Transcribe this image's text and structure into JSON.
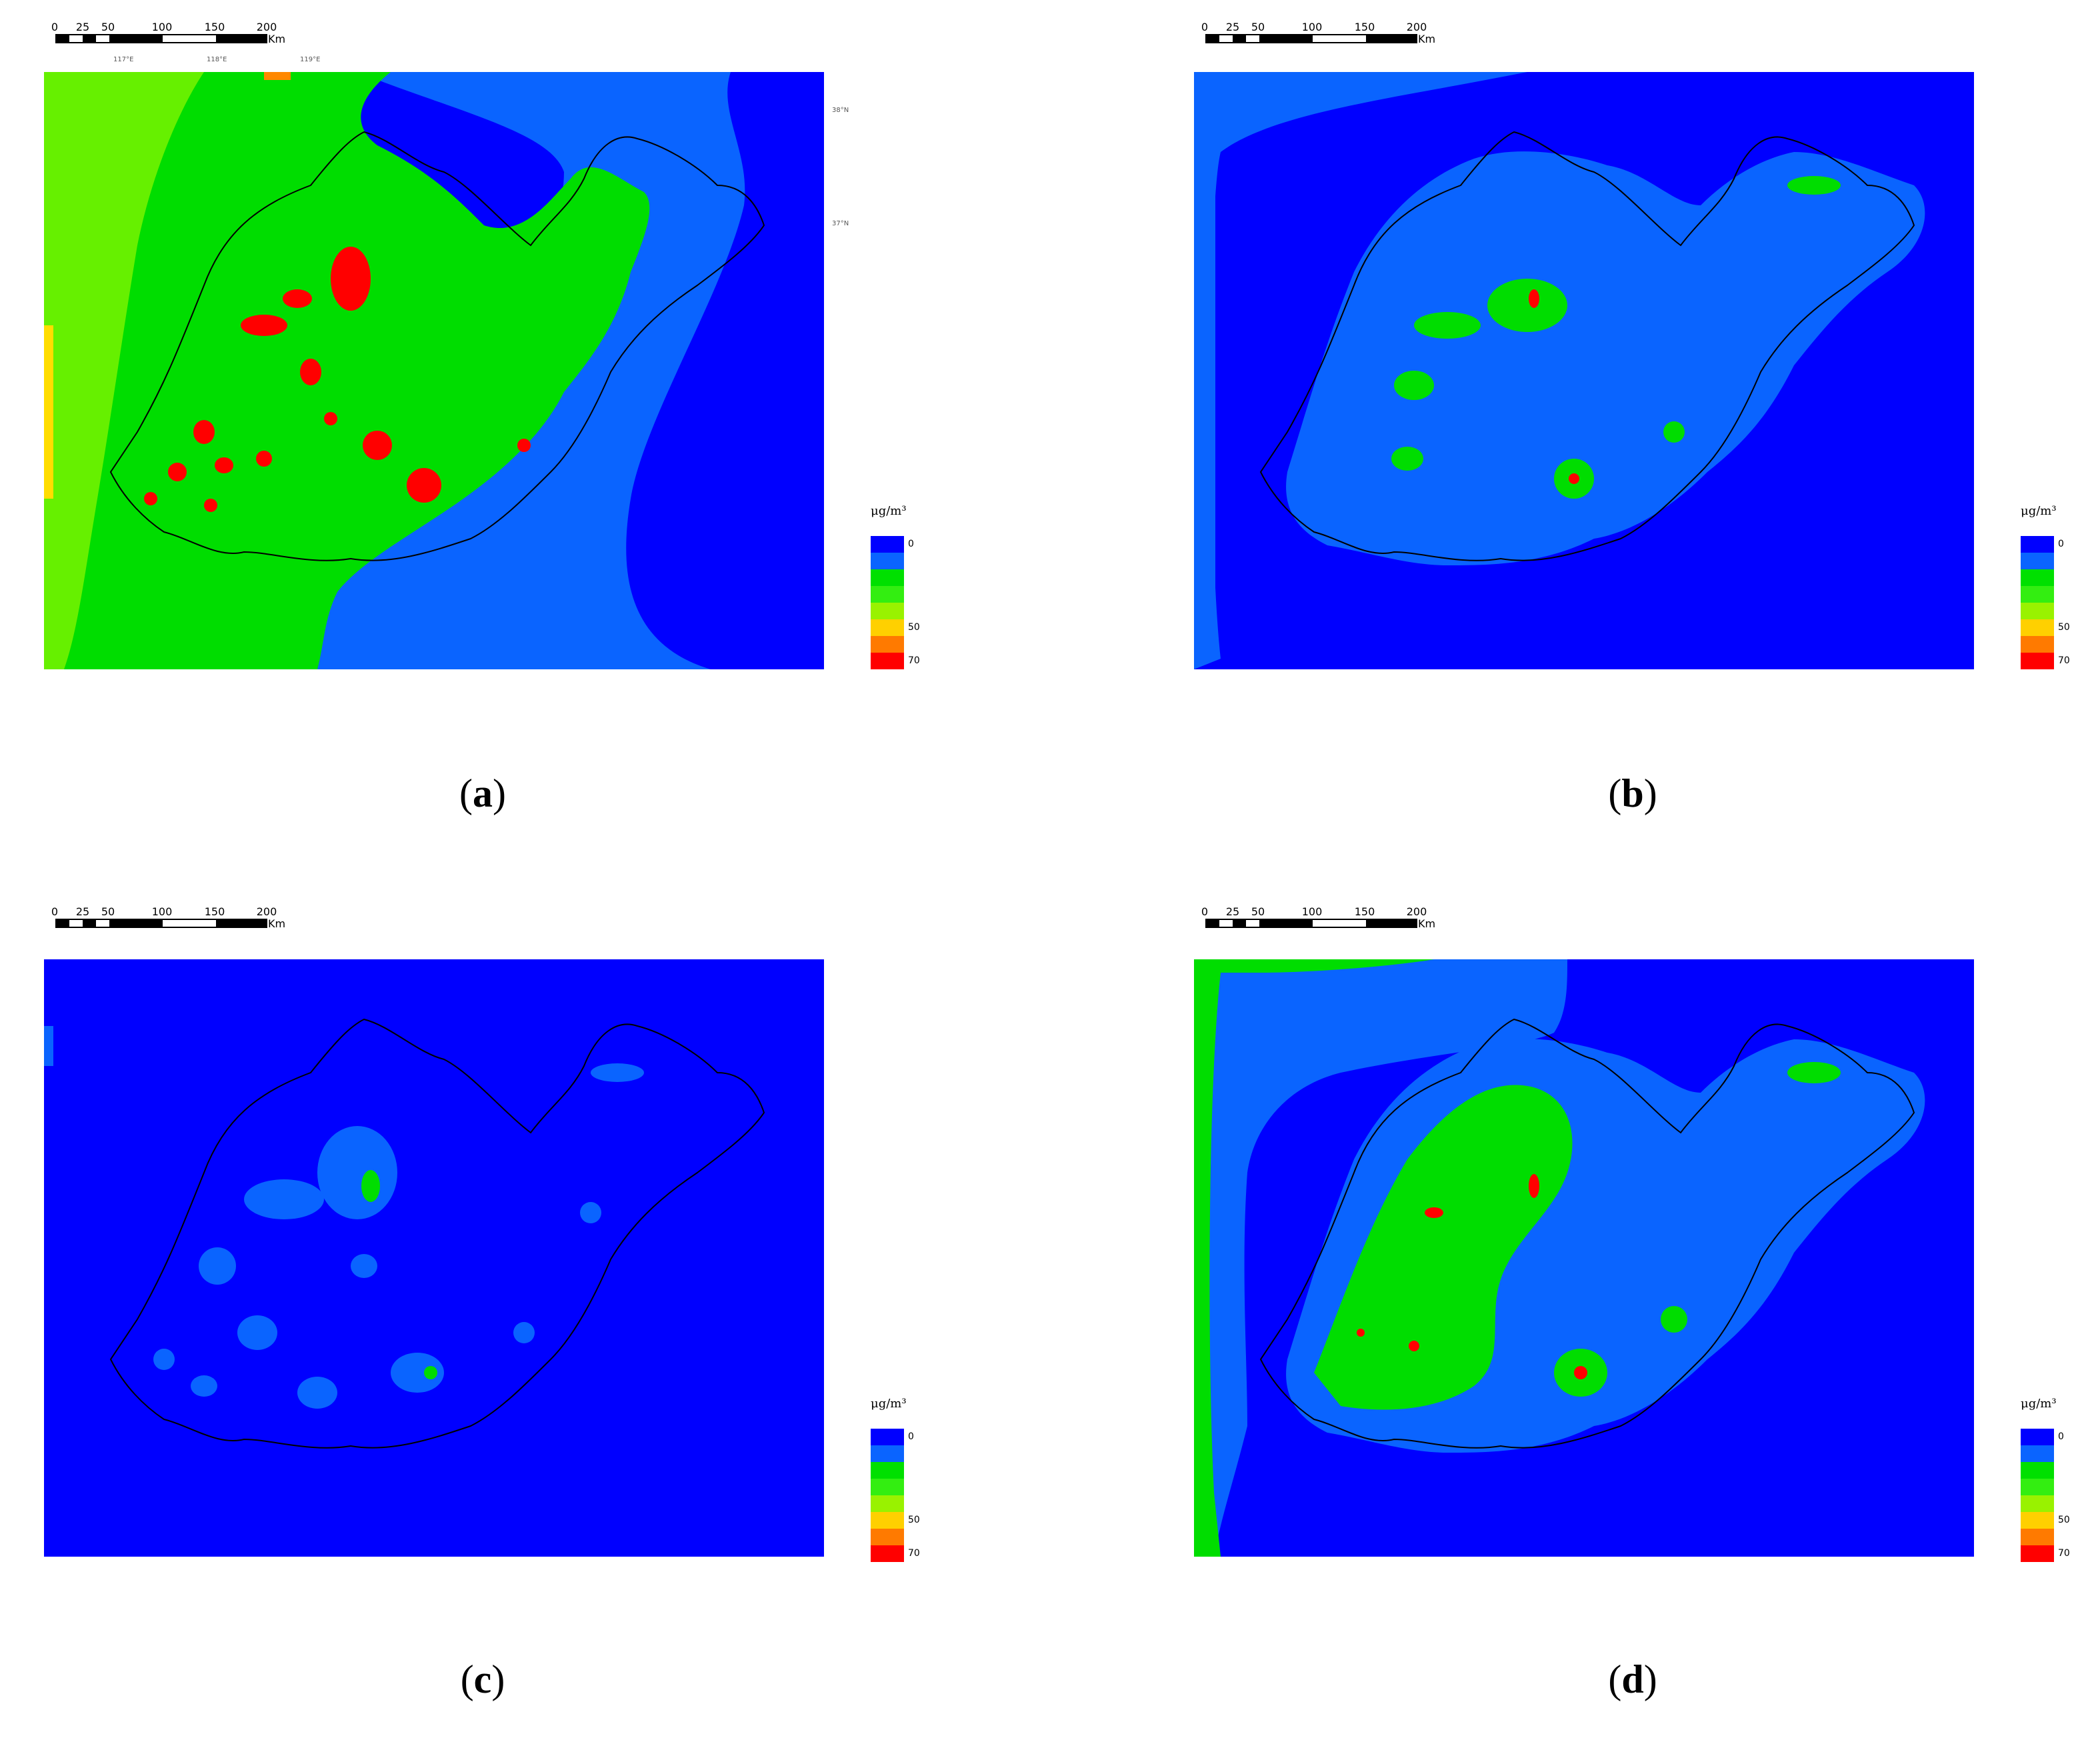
{
  "scale_bar": {
    "ticks": [
      "0",
      "25",
      "50",
      "100",
      "150",
      "200"
    ],
    "unit": "Km"
  },
  "legend": {
    "unit": "μg/m³",
    "labels": [
      "0",
      "50",
      "70"
    ],
    "colors": [
      "#0000ff",
      "#0a64ff",
      "#00e000",
      "#33ee11",
      "#99f200",
      "#ffd000",
      "#ff7a00",
      "#ff0000"
    ]
  },
  "colors": {
    "sea": "#0000ff",
    "light_blue": "#0a64ff",
    "green": "#00dd00",
    "light_green": "#66f000",
    "yellow": "#ffdd00",
    "orange": "#ff8800",
    "red": "#ff0000",
    "outline": "#000000"
  },
  "panels": [
    {
      "id": "a",
      "label_open": "(",
      "label_letter": "a",
      "label_close": ")"
    },
    {
      "id": "b",
      "label_open": "(",
      "label_letter": "b",
      "label_close": ")"
    },
    {
      "id": "c",
      "label_open": "(",
      "label_letter": "c",
      "label_close": ")"
    },
    {
      "id": "d",
      "label_open": "(",
      "label_letter": "d",
      "label_close": ")"
    }
  ]
}
